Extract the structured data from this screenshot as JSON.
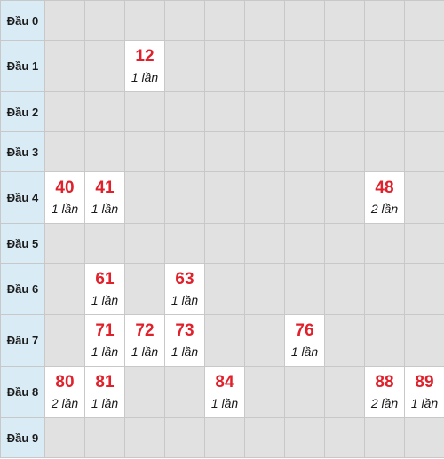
{
  "rows": [
    {
      "label": "Đầu 0",
      "cells": [
        null,
        null,
        null,
        null,
        null,
        null,
        null,
        null,
        null,
        null
      ]
    },
    {
      "label": "Đầu 1",
      "cells": [
        null,
        null,
        {
          "number": "12",
          "count": "1 lần"
        },
        null,
        null,
        null,
        null,
        null,
        null,
        null
      ]
    },
    {
      "label": "Đầu 2",
      "cells": [
        null,
        null,
        null,
        null,
        null,
        null,
        null,
        null,
        null,
        null
      ]
    },
    {
      "label": "Đầu 3",
      "cells": [
        null,
        null,
        null,
        null,
        null,
        null,
        null,
        null,
        null,
        null
      ]
    },
    {
      "label": "Đầu 4",
      "cells": [
        {
          "number": "40",
          "count": "1 lần"
        },
        {
          "number": "41",
          "count": "1 lần"
        },
        null,
        null,
        null,
        null,
        null,
        null,
        {
          "number": "48",
          "count": "2 lần"
        },
        null
      ]
    },
    {
      "label": "Đầu 5",
      "cells": [
        null,
        null,
        null,
        null,
        null,
        null,
        null,
        null,
        null,
        null
      ]
    },
    {
      "label": "Đầu 6",
      "cells": [
        null,
        {
          "number": "61",
          "count": "1 lần"
        },
        null,
        {
          "number": "63",
          "count": "1 lần"
        },
        null,
        null,
        null,
        null,
        null,
        null
      ]
    },
    {
      "label": "Đầu 7",
      "cells": [
        null,
        {
          "number": "71",
          "count": "1 lần"
        },
        {
          "number": "72",
          "count": "1 lần"
        },
        {
          "number": "73",
          "count": "1 lần"
        },
        null,
        null,
        {
          "number": "76",
          "count": "1 lần"
        },
        null,
        null,
        null
      ]
    },
    {
      "label": "Đầu 8",
      "cells": [
        {
          "number": "80",
          "count": "2 lần"
        },
        {
          "number": "81",
          "count": "1 lần"
        },
        null,
        null,
        {
          "number": "84",
          "count": "1 lần"
        },
        null,
        null,
        null,
        {
          "number": "88",
          "count": "2 lần"
        },
        {
          "number": "89",
          "count": "1 lần"
        }
      ]
    },
    {
      "label": "Đầu 9",
      "cells": [
        null,
        null,
        null,
        null,
        null,
        null,
        null,
        null,
        null,
        null
      ]
    }
  ],
  "colors": {
    "number": "#e0202a",
    "header_bg": "#d9ecf6",
    "empty_cell_bg": "#e1e1e1",
    "filled_cell_bg": "#ffffff"
  }
}
